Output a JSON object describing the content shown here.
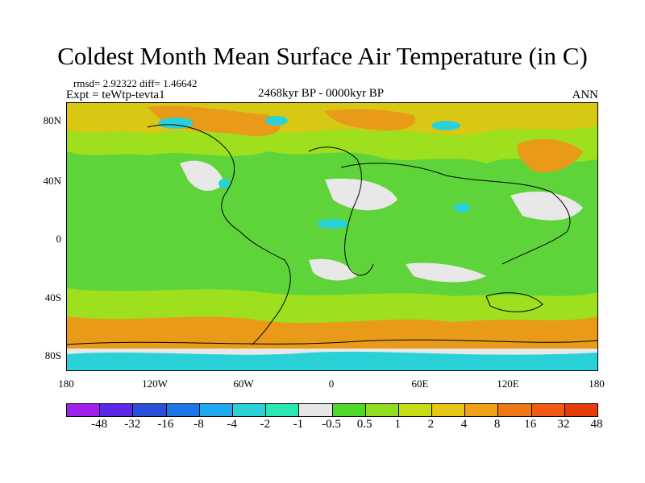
{
  "title": "Coldest Month Mean Surface Air Temperature (in C)",
  "stats": "rmsd= 2.92322 diff= 1.46642",
  "expt": "Expt = teWtp-tevta1",
  "period": "2468kyr BP - 0000kyr BP",
  "season": "ANN",
  "map": {
    "lat_ticks": [
      "80N",
      "40N",
      "0",
      "40S",
      "80S"
    ],
    "lon_ticks": [
      "180",
      "120W",
      "60W",
      "0",
      "60E",
      "120E",
      "180"
    ]
  },
  "colorbar": {
    "colors": [
      "#a020f0",
      "#5a28e6",
      "#2a4fd8",
      "#1c78e8",
      "#20a8f0",
      "#2ad2d8",
      "#28e8b4",
      "#e6e6e6",
      "#50d828",
      "#90e020",
      "#c8dc14",
      "#e6c814",
      "#f0a014",
      "#f07814",
      "#f05a14",
      "#e63c0a"
    ],
    "labels": [
      "-48",
      "-32",
      "-16",
      "-8",
      "-4",
      "-2",
      "-1",
      "-0.5",
      "0.5",
      "1",
      "2",
      "4",
      "8",
      "16",
      "32",
      "48"
    ]
  }
}
